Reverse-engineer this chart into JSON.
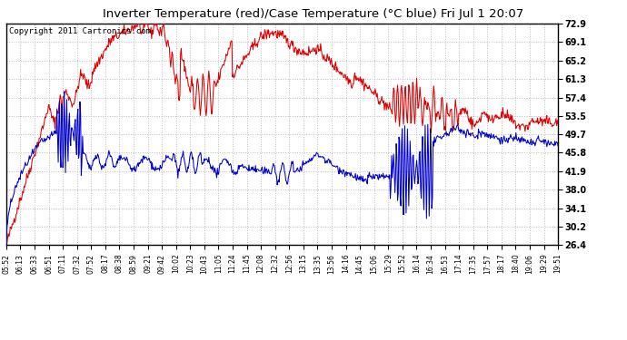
{
  "title": "Inverter Temperature (red)/Case Temperature (°C blue) Fri Jul 1 20:07",
  "copyright": "Copyright 2011 Cartronics.com",
  "yticks": [
    26.4,
    30.2,
    34.1,
    38.0,
    41.9,
    45.8,
    49.7,
    53.5,
    57.4,
    61.3,
    65.2,
    69.1,
    72.9
  ],
  "ylim": [
    26.4,
    72.9
  ],
  "xtick_labels": [
    "05:52",
    "06:13",
    "06:33",
    "06:51",
    "07:11",
    "07:32",
    "07:52",
    "08:17",
    "08:38",
    "08:59",
    "09:21",
    "09:42",
    "10:02",
    "10:23",
    "10:43",
    "11:05",
    "11:24",
    "11:45",
    "12:08",
    "12:32",
    "12:56",
    "13:15",
    "13:35",
    "13:56",
    "14:16",
    "14:45",
    "15:06",
    "15:29",
    "15:52",
    "16:14",
    "16:34",
    "16:53",
    "17:14",
    "17:35",
    "17:57",
    "18:17",
    "18:40",
    "19:06",
    "19:29",
    "19:51"
  ],
  "bg_color": "#ffffff",
  "plot_bg": "#ffffff",
  "grid_color": "#bbbbbb",
  "red_color": "#dd0000",
  "blue_color": "#0000cc",
  "title_fontsize": 9.5,
  "copyright_fontsize": 6.5
}
